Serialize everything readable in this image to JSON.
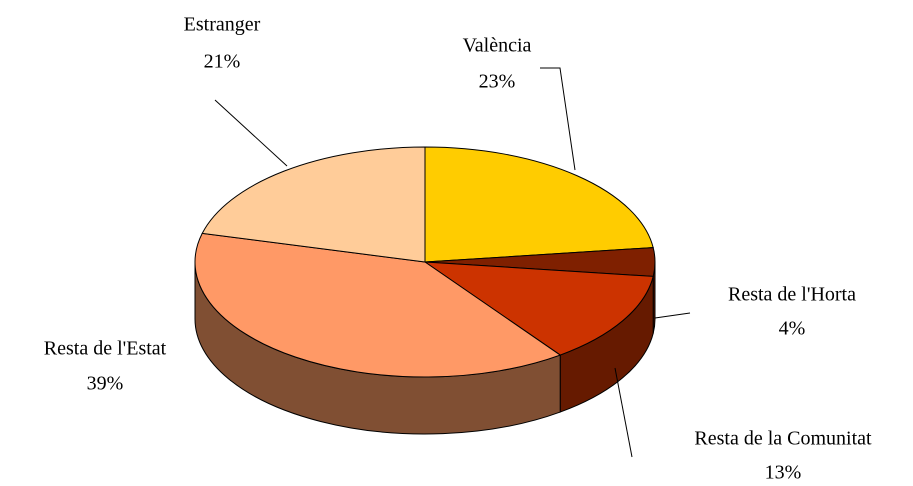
{
  "chart_data": {
    "type": "pie3d",
    "categories": [
      "València",
      "Resta de l'Horta",
      "Resta de la Comunitat",
      "Resta de l'Estat",
      "Estranger"
    ],
    "values": [
      23,
      4,
      13,
      39,
      21
    ],
    "value_labels": [
      "23%",
      "4%",
      "13%",
      "39%",
      "21%"
    ],
    "colors": [
      "#FFCC00",
      "#7F2000",
      "#CC3300",
      "#FF9966",
      "#FFCC99"
    ],
    "side_colors": [
      "#806600",
      "#5A1600",
      "#661A00",
      "#804F33",
      "#806650"
    ]
  }
}
